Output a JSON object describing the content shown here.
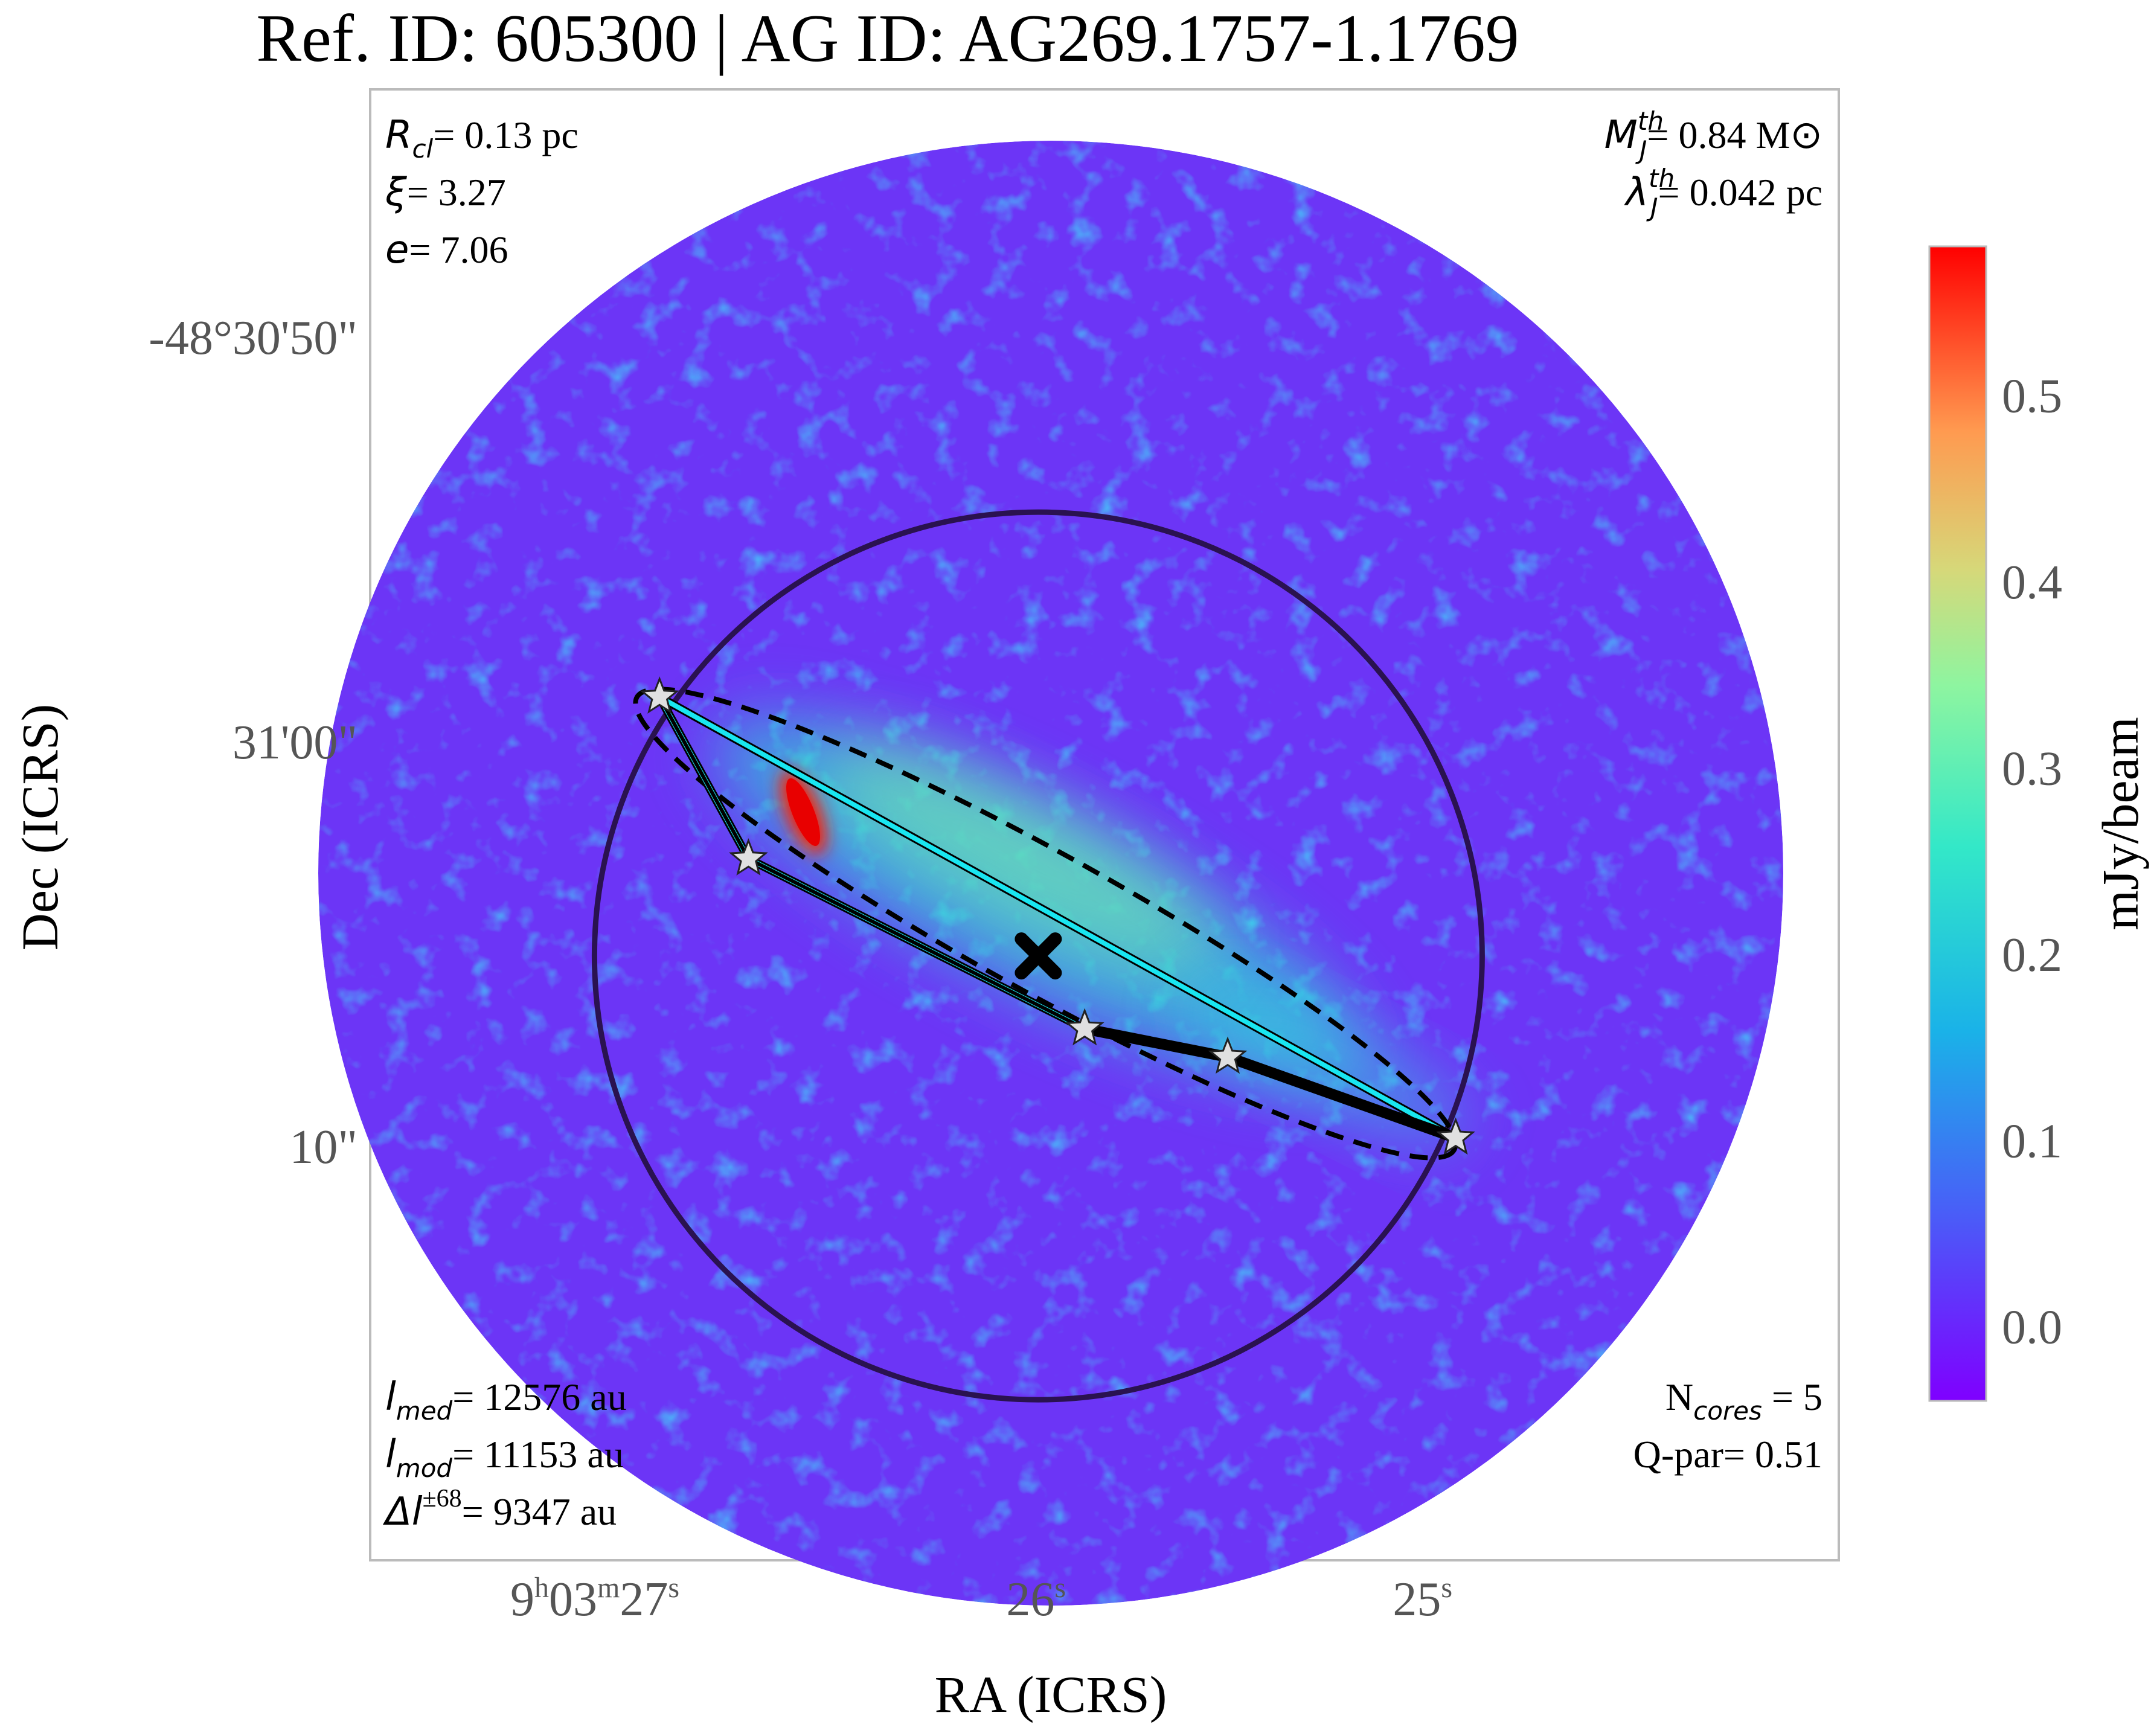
{
  "title": "Ref. ID: 605300 | AG ID: AG269.1757-1.1769",
  "chart_data": {
    "type": "heatmap",
    "title": "Ref. ID: 605300 | AG ID: AG269.1757-1.1769",
    "xlabel": "RA (ICRS)",
    "ylabel": "Dec (ICRS)",
    "x_ticks": [
      {
        "h": "9",
        "m": "03",
        "s": "27",
        "ra_s": 27
      },
      {
        "s": "26",
        "ra_s": 26
      },
      {
        "s": "25",
        "ra_s": 25
      }
    ],
    "y_ticks": [
      {
        "label": "-48°30'50\"",
        "dec_arcsec": 50
      },
      {
        "label": "31'00\"",
        "dec_arcsec": 60
      },
      {
        "label": "10\"",
        "dec_arcsec": 70
      }
    ],
    "colorbar": {
      "label": "mJy/beam",
      "colormap": "rainbow",
      "range": [
        -0.04,
        0.58
      ],
      "ticks": [
        "0.0",
        "0.1",
        "0.2",
        "0.3",
        "0.4",
        "0.5"
      ],
      "tick_values": [
        0.0,
        0.1,
        0.2,
        0.3,
        0.4,
        0.5
      ]
    },
    "annotations": {
      "top_left": [
        {
          "sym": "R",
          "sub": "cl",
          "text": "= 0.13 pc"
        },
        {
          "sym": "ξ",
          "text": "= 3.27"
        },
        {
          "sym": "e",
          "text": "= 7.06"
        }
      ],
      "top_right": [
        {
          "sym": "M",
          "sup": "th",
          "sub": "J",
          "text": "= 0.84 M",
          "unit": "⊙"
        },
        {
          "sym": "λ",
          "sup": "th",
          "sub": "J",
          "text": "= 0.042 pc"
        }
      ],
      "bottom_left": [
        {
          "sym": "l",
          "sub": "med",
          "text": "= 12576 au"
        },
        {
          "sym": "l",
          "sub": "mod",
          "text": "= 11153 au"
        },
        {
          "sym": "Δl",
          "sup": "±68",
          "text": "= 9347 au"
        }
      ],
      "bottom_right": [
        {
          "pre": "N",
          "sub": "cores",
          "text": " = 5"
        },
        {
          "pre": "Q-par",
          "text": "= 0.51"
        }
      ]
    },
    "cores": [
      {
        "ra_s": 27.02,
        "dec_arcsec": 58.9
      },
      {
        "ra_s": 26.79,
        "dec_arcsec": 62.9
      },
      {
        "ra_s": 25.92,
        "dec_arcsec": 67.1
      },
      {
        "ra_s": 25.55,
        "dec_arcsec": 67.8
      },
      {
        "ra_s": 24.96,
        "dec_arcsec": 69.8
      }
    ],
    "clump_center": {
      "ra_s": 26.04,
      "dec_arcsec": 65.3
    },
    "overlays": [
      "clump circle",
      "fitted ellipse (dashed)",
      "minimum spanning tree",
      "convex hull (cyan)"
    ],
    "colors": {
      "hull": "#19e6f0",
      "mst": "#000000",
      "circle": "#2a1250",
      "star_fill": "#e0e0e0"
    }
  }
}
